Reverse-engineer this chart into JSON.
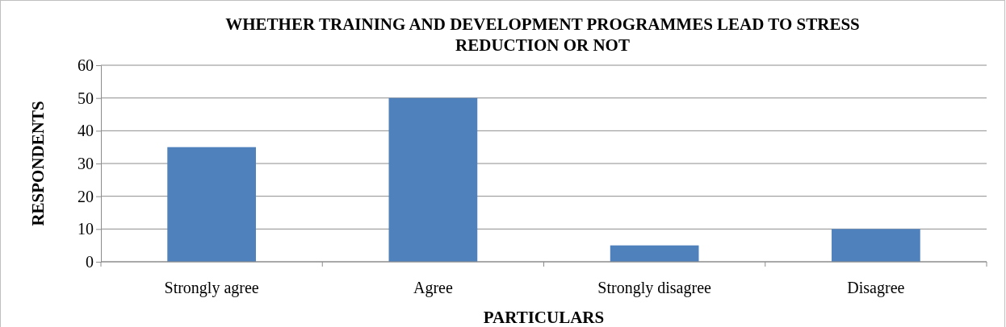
{
  "chart_data": {
    "type": "bar",
    "title": "WHETHER TRAINING AND DEVELOPMENT PROGRAMMES LEAD TO STRESS REDUCTION OR NOT",
    "xlabel": "PARTICULARS",
    "ylabel": "RESPONDENTS",
    "categories": [
      "Strongly agree",
      "Agree",
      "Strongly disagree",
      "Disagree"
    ],
    "values": [
      35,
      50,
      5,
      10
    ],
    "color": "#4f81bd",
    "ylim": [
      0,
      60
    ],
    "yticks": [
      0,
      10,
      20,
      30,
      40,
      50,
      60
    ],
    "grid": "y"
  }
}
